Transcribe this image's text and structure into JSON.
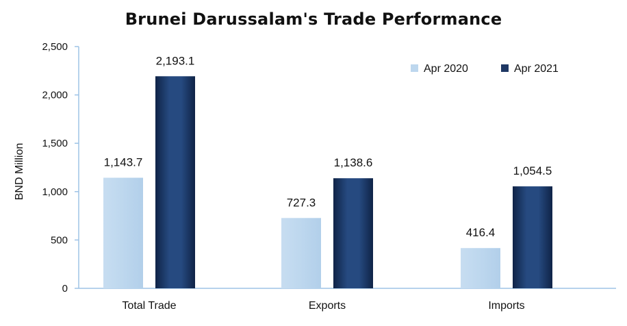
{
  "title": "Brunei Darussalam's Trade Performance",
  "chart_data": {
    "type": "bar",
    "title": "Brunei Darussalam's Trade Performance",
    "xlabel": "",
    "ylabel": "BND Million",
    "ylim": [
      0,
      2500
    ],
    "yticks": [
      0,
      500,
      1000,
      1500,
      2000,
      2500
    ],
    "ytick_labels": [
      "0",
      "500",
      "1,000",
      "1,500",
      "2,000",
      "2,500"
    ],
    "categories": [
      "Total Trade",
      "Exports",
      "Imports"
    ],
    "series": [
      {
        "name": "Apr 2020",
        "values": [
          1143.7,
          727.3,
          416.4
        ],
        "labels": [
          "1,143.7",
          "727.3",
          "416.4"
        ],
        "color": "#bdd7ee"
      },
      {
        "name": "Apr 2021",
        "values": [
          2193.1,
          1138.6,
          1054.5
        ],
        "labels": [
          "2,193.1",
          "1,138.6",
          "1,054.5"
        ],
        "color": "#1f3864"
      }
    ],
    "grid": false,
    "legend_position": "top-right",
    "axis_color": "#9dc3e6"
  }
}
